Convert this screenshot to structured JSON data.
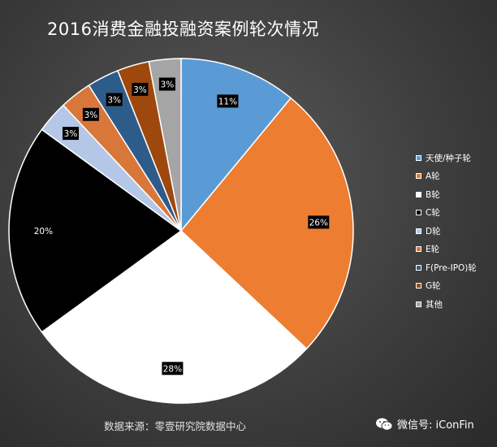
{
  "chart_data": {
    "type": "pie",
    "title": "2016消费金融投融资案例轮次情况",
    "slices": [
      {
        "label": "天使/种子轮",
        "value": 11,
        "display": "11%",
        "color": "#5b9bd5"
      },
      {
        "label": "A轮",
        "value": 26,
        "display": "26%",
        "color": "#ed7d31"
      },
      {
        "label": "B轮",
        "value": 28,
        "display": "28%",
        "color": "#ffffff"
      },
      {
        "label": "C轮",
        "value": 20,
        "display": "20%",
        "color": "#000000"
      },
      {
        "label": "D轮",
        "value": 3,
        "display": "3%",
        "color": "#b4c7e7"
      },
      {
        "label": "E轮",
        "value": 3,
        "display": "3%",
        "color": "#d9763a"
      },
      {
        "label": "F(Pre-IPO)轮",
        "value": 3,
        "display": "3%",
        "color": "#2e5c8a"
      },
      {
        "label": "G轮",
        "value": 3,
        "display": "3%",
        "color": "#9e480e"
      },
      {
        "label": "其他",
        "value": 3,
        "display": "3%",
        "color": "#a5a5a5"
      }
    ],
    "legend_position": "right"
  },
  "footer": {
    "source": "数据来源：零壹研究院数据中心",
    "watermark": "微信号: iConFin"
  },
  "icons": {
    "wechat": "wechat-icon"
  }
}
